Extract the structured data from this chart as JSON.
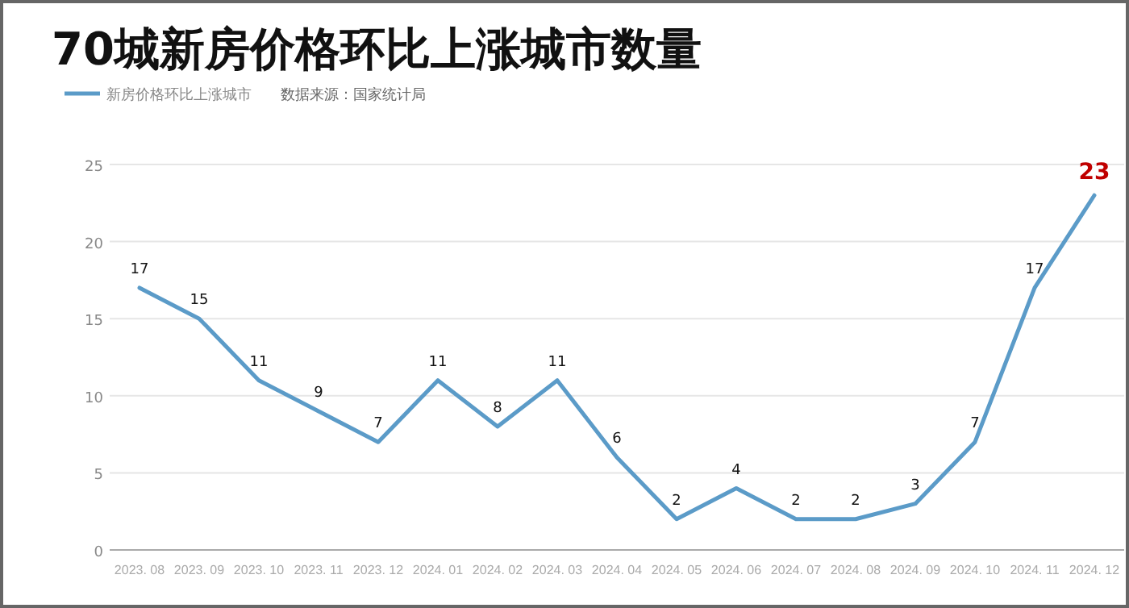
{
  "chart_data": {
    "type": "line",
    "title": "70城新房价格环比上涨城市数量",
    "categories": [
      "2023. 08",
      "2023. 09",
      "2023. 10",
      "2023. 11",
      "2023. 12",
      "2024. 01",
      "2024. 02",
      "2024. 03",
      "2024. 04",
      "2024. 05",
      "2024. 06",
      "2024. 07",
      "2024. 08",
      "2024. 09",
      "2024. 10",
      "2024. 11",
      "2024. 12"
    ],
    "series": [
      {
        "name": "新房价格环比上涨城市",
        "color": "#5b9bc8",
        "values": [
          17,
          15,
          11,
          9,
          7,
          11,
          8,
          11,
          6,
          2,
          4,
          2,
          2,
          3,
          7,
          17,
          23
        ]
      }
    ],
    "value_labels": [
      "17",
      "15",
      "11",
      "9",
      "7",
      "11",
      "8",
      "11",
      "6",
      "2",
      "4",
      "2",
      "2",
      "3",
      "7",
      "17",
      null
    ],
    "annotations": [
      "数据来源：国家统计局",
      {
        "text": "23",
        "x": "2024. 12",
        "y": 23
      }
    ],
    "ylim": [
      0,
      25
    ],
    "yticks": [
      0,
      5,
      10,
      15,
      20,
      25
    ],
    "grid": "y",
    "legend": "top left",
    "marker": "none",
    "line_style": "solid"
  }
}
